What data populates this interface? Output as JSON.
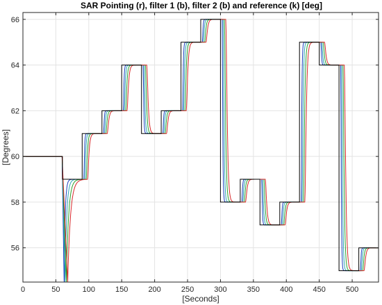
{
  "chart_data": {
    "type": "line",
    "title": "SAR Pointing (r), filter 1 (b), filter 2 (b) and reference (k) [deg]",
    "xlabel": "[Seconds]",
    "ylabel": "[Degrees]",
    "xlim": [
      0,
      540
    ],
    "ylim": [
      54.5,
      66.3
    ],
    "x_ticks": [
      0,
      50,
      100,
      150,
      200,
      250,
      300,
      350,
      400,
      450,
      500
    ],
    "y_ticks": [
      56,
      58,
      60,
      62,
      64,
      66
    ],
    "grid": true,
    "colors": {
      "reference": "#000000",
      "filter_blue": "#1f3fbf",
      "filter_cyan": "#2aa6b8",
      "filter_green": "#2ca02c",
      "pointing_red": "#d62728"
    },
    "series": [
      {
        "name": "reference",
        "color": "#000000",
        "steps": [
          [
            0,
            60
          ],
          [
            60,
            59
          ],
          [
            90,
            61
          ],
          [
            120,
            62
          ],
          [
            150,
            64
          ],
          [
            180,
            61
          ],
          [
            210,
            62
          ],
          [
            240,
            65
          ],
          [
            270,
            66
          ],
          [
            300,
            58
          ],
          [
            330,
            59
          ],
          [
            360,
            57
          ],
          [
            390,
            58
          ],
          [
            420,
            65
          ],
          [
            450,
            64
          ],
          [
            480,
            55
          ],
          [
            510,
            56
          ],
          [
            540,
            56
          ]
        ]
      }
    ],
    "response_curves": [
      {
        "color": "#1f3fbf",
        "lag": 2.5,
        "tau": 1.2
      },
      {
        "color": "#2aa6b8",
        "lag": 4,
        "tau": 1.8
      },
      {
        "color": "#2ca02c",
        "lag": 6,
        "tau": 2.4
      },
      {
        "color": "#d62728",
        "lag": 8,
        "tau": 3.0
      }
    ],
    "initial_transient": {
      "start_value": 54.5
    }
  }
}
